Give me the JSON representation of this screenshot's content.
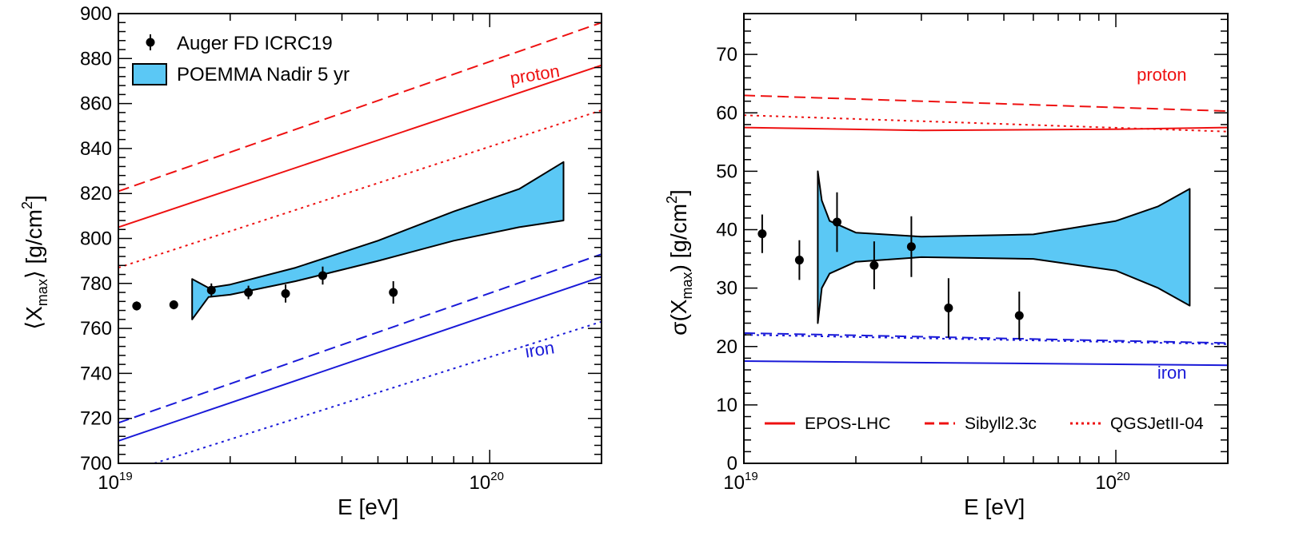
{
  "chart_data": [
    {
      "type": "line",
      "panel": "left",
      "xlabel": "E [eV]",
      "ylabel": "⟨X_max⟩ [g/cm^2]",
      "ylabel_parts": {
        "pre": "⟨X",
        "sub": "max",
        "post": "⟩ [g/cm",
        "sup": "2",
        "end": "]"
      },
      "x_scale": "log",
      "xlim": [
        1e+19,
        2e+20
      ],
      "ylim": [
        700,
        900
      ],
      "x_tick_labels": [
        {
          "value": 1e+19,
          "base": "10",
          "exp": "19"
        },
        {
          "value": 1e+20,
          "base": "10",
          "exp": "20"
        }
      ],
      "y_ticks": [
        700,
        720,
        740,
        760,
        780,
        800,
        820,
        840,
        860,
        880,
        900
      ],
      "legend": {
        "position": "top-left",
        "entries": [
          {
            "label": "Auger FD ICRC19",
            "kind": "marker"
          },
          {
            "label": "POEMMA Nadir 5 yr",
            "kind": "band",
            "color": "#5bc8f5"
          }
        ]
      },
      "annotations": [
        {
          "text": "proton",
          "color": "#ee1111",
          "x": 1.55e+20,
          "y": 872
        },
        {
          "text": "iron",
          "color": "#1a1ad8",
          "x": 1.5e+20,
          "y": 749
        }
      ],
      "series": [
        {
          "name": "proton EPOS-LHC",
          "color": "#ee1111",
          "style": "solid",
          "x": [
            1e+19,
            2e+20
          ],
          "y": [
            805,
            877
          ]
        },
        {
          "name": "proton Sibyll2.3c",
          "color": "#ee1111",
          "style": "dashed",
          "x": [
            1e+19,
            2e+20
          ],
          "y": [
            821,
            896
          ]
        },
        {
          "name": "proton QGSJetII-04",
          "color": "#ee1111",
          "style": "dotted",
          "x": [
            1e+19,
            2e+20
          ],
          "y": [
            787,
            857
          ]
        },
        {
          "name": "iron EPOS-LHC",
          "color": "#1a1ad8",
          "style": "solid",
          "x": [
            1e+19,
            2e+20
          ],
          "y": [
            710,
            783
          ]
        },
        {
          "name": "iron Sibyll2.3c",
          "color": "#1a1ad8",
          "style": "dashed",
          "x": [
            1e+19,
            2e+20
          ],
          "y": [
            718,
            793
          ]
        },
        {
          "name": "iron QGSJetII-04",
          "color": "#1a1ad8",
          "style": "dotted",
          "x": [
            1.25e+19,
            2e+20
          ],
          "y": [
            700,
            763
          ]
        }
      ],
      "band": {
        "name": "POEMMA Nadir 5 yr",
        "color": "#5bc8f5",
        "x": [
          1.58e+19,
          1.75e+19,
          2e+19,
          3e+19,
          5e+19,
          8e+19,
          1.2e+20,
          1.58e+20
        ],
        "upper": [
          782,
          778,
          779.5,
          787,
          799,
          812,
          822,
          834
        ],
        "lower": [
          764,
          774,
          775,
          781,
          790,
          799,
          805,
          808
        ]
      },
      "points": {
        "name": "Auger FD ICRC19",
        "x": [
          1.12e+19,
          1.41e+19,
          1.78e+19,
          2.24e+19,
          2.82e+19,
          3.55e+19,
          5.5e+19
        ],
        "y": [
          770,
          770.5,
          777,
          776,
          775.5,
          783.5,
          776
        ],
        "err": [
          2,
          2,
          3,
          3,
          4,
          4,
          5
        ]
      }
    },
    {
      "type": "line",
      "panel": "right",
      "xlabel": "E [eV]",
      "ylabel": "σ(X_max) [g/cm^2]",
      "ylabel_parts": {
        "pre": "σ(X",
        "sub": "max",
        "post": ") [g/cm",
        "sup": "2",
        "end": "]"
      },
      "x_scale": "log",
      "xlim": [
        1e+19,
        2e+20
      ],
      "ylim": [
        0,
        77
      ],
      "x_tick_labels": [
        {
          "value": 1e+19,
          "base": "10",
          "exp": "19"
        },
        {
          "value": 1e+20,
          "base": "10",
          "exp": "20"
        }
      ],
      "y_ticks": [
        0,
        10,
        20,
        30,
        40,
        50,
        60,
        70
      ],
      "legend": {
        "position": "bottom",
        "entries": [
          {
            "label": "EPOS-LHC",
            "style": "solid",
            "color": "#ee1111"
          },
          {
            "label": "Sibyll2.3c",
            "style": "dashed",
            "color": "#ee1111"
          },
          {
            "label": "QGSJetII-04",
            "style": "dotted",
            "color": "#ee1111"
          }
        ]
      },
      "annotations": [
        {
          "text": "proton",
          "color": "#ee1111",
          "x": 1.55e+20,
          "y": 65.5
        },
        {
          "text": "iron",
          "color": "#1a1ad8",
          "x": 1.55e+20,
          "y": 14.5
        }
      ],
      "series": [
        {
          "name": "proton EPOS-LHC",
          "color": "#ee1111",
          "style": "solid",
          "x": [
            1e+19,
            3e+19,
            1e+20,
            2e+20
          ],
          "y": [
            57.5,
            57,
            57.2,
            57.5
          ]
        },
        {
          "name": "proton Sibyll2.3c",
          "color": "#ee1111",
          "style": "dashed",
          "x": [
            1e+19,
            2e+20
          ],
          "y": [
            63,
            60.3
          ]
        },
        {
          "name": "proton QGSJetII-04",
          "color": "#ee1111",
          "style": "dotted",
          "x": [
            1e+19,
            2e+20
          ],
          "y": [
            59.6,
            56.8
          ]
        },
        {
          "name": "iron EPOS-LHC",
          "color": "#1a1ad8",
          "style": "solid",
          "x": [
            1e+19,
            2e+20
          ],
          "y": [
            17.5,
            16.8
          ]
        },
        {
          "name": "iron Sibyll2.3c",
          "color": "#1a1ad8",
          "style": "dashed",
          "x": [
            1e+19,
            2e+20
          ],
          "y": [
            22.3,
            20.6
          ]
        },
        {
          "name": "iron QGSJetII-04",
          "color": "#1a1ad8",
          "style": "dotted",
          "x": [
            1e+19,
            2e+20
          ],
          "y": [
            22,
            20.4
          ]
        }
      ],
      "band": {
        "name": "POEMMA Nadir 5 yr",
        "color": "#5bc8f5",
        "x": [
          1.58e+19,
          1.62e+19,
          1.7e+19,
          2e+19,
          3e+19,
          6e+19,
          1e+20,
          1.3e+20,
          1.58e+20
        ],
        "upper": [
          50,
          45,
          41.5,
          39.5,
          38.8,
          39.2,
          41.5,
          44,
          47
        ],
        "lower": [
          24,
          30,
          32.5,
          34.5,
          35.3,
          35,
          33,
          30,
          27
        ]
      },
      "points": {
        "name": "Auger FD ICRC19",
        "x": [
          1.12e+19,
          1.41e+19,
          1.78e+19,
          2.24e+19,
          2.82e+19,
          3.55e+19,
          5.5e+19
        ],
        "y": [
          39.3,
          34.8,
          41.3,
          33.9,
          37.1,
          26.6,
          25.3
        ],
        "err": [
          3.3,
          3.4,
          5.1,
          4.1,
          5.2,
          5.1,
          4.1
        ]
      }
    }
  ]
}
